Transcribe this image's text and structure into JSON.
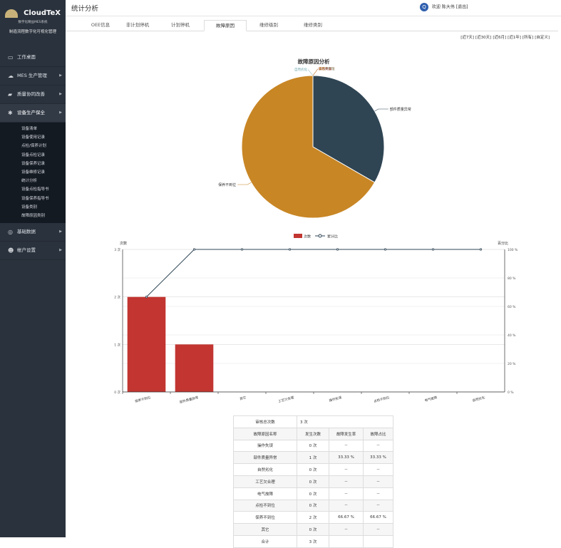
{
  "brand": {
    "name": "CloudTeX",
    "subtitle": "数字化精益MES系统",
    "tagline": "制造流程数字化可视化管理"
  },
  "sidebar": {
    "items": [
      {
        "label": "工作桌面",
        "icon": "desktop-icon",
        "has_children": false
      },
      {
        "label": "MES 生产管理",
        "icon": "cloud-icon",
        "has_children": true
      },
      {
        "label": "质量协同改善",
        "icon": "car-icon",
        "has_children": true
      },
      {
        "label": "设备生产保全",
        "icon": "gear-icon",
        "has_children": true,
        "active": true
      },
      {
        "label": "基础数据",
        "icon": "target-icon",
        "has_children": true
      },
      {
        "label": "帐户设置",
        "icon": "users-icon",
        "has_children": true
      }
    ],
    "submenu": [
      "设备清单",
      "设备使用记录",
      "点检/保养计划",
      "设备点检记录",
      "设备保养记录",
      "设备维修记录",
      "统计分析",
      "设备点检指导书",
      "设备保养指导书",
      "设备类别",
      "故障原因类别"
    ]
  },
  "header": {
    "title": "统计分析",
    "user_text": "欢迎 陈大伟 [退出]",
    "avatar_letter": "Q"
  },
  "tabs": [
    "OEE信息",
    "非计划停机",
    "计划停机",
    "故障原因",
    "维修级别",
    "维修类别"
  ],
  "active_tab": 3,
  "filters": [
    "[近7天]",
    "[近30天]",
    "[近6月]",
    "[近1年]",
    "[所有]",
    "[自定义]"
  ],
  "pie_chart": {
    "title": "故障原因分析",
    "colors": [
      "#2f4554",
      "#c88625",
      "#61a0a8",
      "#d48265",
      "#91c7ae",
      "#749f83",
      "#c23531",
      "#ca8622"
    ],
    "labels_small": [
      "其它",
      "操作失误",
      "自然劣化",
      "工艺欠合理",
      "电气故障",
      "点检不到位"
    ]
  },
  "bar_chart": {
    "y_left_name": "次数",
    "y_right_name": "百分比",
    "legend_bar": "次数",
    "legend_line": "累计比",
    "bar_color": "#c23531",
    "line_color": "#2f4554",
    "y_left_ticks": [
      "0 次",
      "1 次",
      "2 次",
      "3 次"
    ],
    "y_right_ticks": [
      "0 %",
      "20 %",
      "40 %",
      "60 %",
      "80 %",
      "100 %"
    ]
  },
  "chart_data": [
    {
      "type": "pie",
      "title": "故障原因分析",
      "labels": [
        "部件质量异常",
        "保养不到位",
        "自然劣化",
        "工艺欠合理",
        "电气故障",
        "点检不到位",
        "操作失误",
        "其它"
      ],
      "values": [
        1,
        2,
        0,
        0,
        0,
        0,
        0,
        0
      ]
    },
    {
      "type": "bar",
      "categories": [
        "保养不到位",
        "部件质量异常",
        "其它",
        "工艺欠合理",
        "操作失误",
        "点检不到位",
        "电气故障",
        "自然劣化"
      ],
      "series": [
        {
          "name": "次数",
          "type": "bar",
          "values": [
            2,
            1,
            0,
            0,
            0,
            0,
            0,
            0
          ]
        },
        {
          "name": "累计比",
          "type": "line",
          "values": [
            66.67,
            100,
            100,
            100,
            100,
            100,
            100,
            100
          ]
        }
      ],
      "ylabel": "次数",
      "ylim": [
        0,
        3
      ],
      "y2label": "百分比",
      "y2lim": [
        0,
        100
      ],
      "legend": "top-center"
    }
  ],
  "stats_table": {
    "summary_label": "审核总次数",
    "summary_value": "3 次",
    "headers": [
      "故障原因名称",
      "发生次数",
      "故障发生率",
      "故障占比"
    ],
    "rows": [
      [
        "操作失误",
        "0 次",
        "--",
        "--"
      ],
      [
        "部件质量异常",
        "1 次",
        "33.33 %",
        "33.33 %"
      ],
      [
        "自然劣化",
        "0 次",
        "--",
        "--"
      ],
      [
        "工艺欠合理",
        "0 次",
        "--",
        "--"
      ],
      [
        "电气故障",
        "0 次",
        "--",
        "--"
      ],
      [
        "点检不到位",
        "0 次",
        "--",
        "--"
      ],
      [
        "保养不到位",
        "2 次",
        "66.67 %",
        "66.67 %"
      ],
      [
        "其它",
        "0 次",
        "--",
        "--"
      ],
      [
        "合计",
        "3 次",
        "",
        ""
      ]
    ]
  }
}
